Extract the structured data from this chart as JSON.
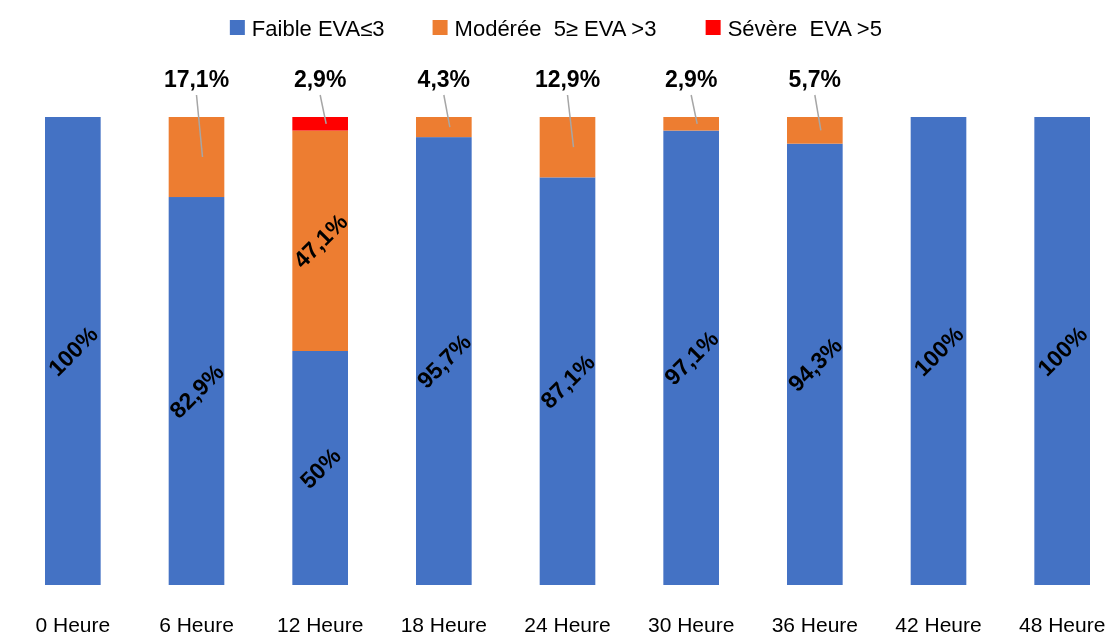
{
  "chart_data": {
    "type": "bar",
    "stacked": true,
    "categories": [
      "0 Heure",
      "6 Heure",
      "12 Heure",
      "18 Heure",
      "24 Heure",
      "30 Heure",
      "36 Heure",
      "42 Heure",
      "48 Heure"
    ],
    "series": [
      {
        "name": "Faible EVA≤3",
        "color": "#4472c4",
        "values": [
          100,
          82.9,
          50,
          95.7,
          87.1,
          97.1,
          94.3,
          100,
          100
        ],
        "value_labels": [
          "100%",
          "82,9%",
          "50%",
          "95,7%",
          "87,1%",
          "97,1%",
          "94,3%",
          "100%",
          "100%"
        ]
      },
      {
        "name": "Modérée  5≥ EVA >3",
        "color": "#ed7d31",
        "values": [
          null,
          17.1,
          47.1,
          4.3,
          12.9,
          2.9,
          5.7,
          null,
          null
        ],
        "value_labels": [
          null,
          "17,1%",
          "47,1%",
          "4,3%",
          "12,9%",
          "2,9%",
          "5,7%",
          null,
          null
        ]
      },
      {
        "name": "Sévère  EVA >5",
        "color": "#ff0000",
        "values": [
          null,
          null,
          2.9,
          null,
          null,
          null,
          null,
          null,
          null
        ],
        "value_labels": [
          null,
          null,
          "2,9%",
          null,
          null,
          null,
          null,
          null,
          null
        ]
      }
    ],
    "ylim": [
      0,
      100
    ],
    "tick_labels": "x",
    "legend": "top"
  }
}
